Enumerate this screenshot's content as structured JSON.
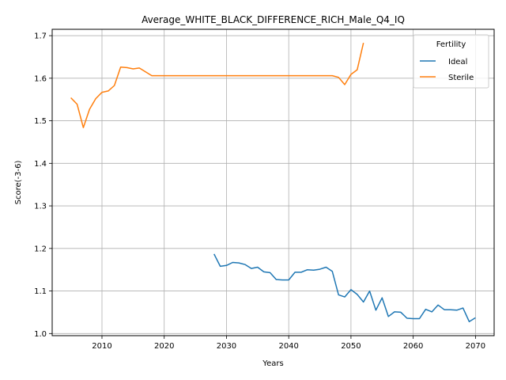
{
  "chart_data": {
    "type": "line",
    "title": "Average_WHITE_BLACK_DIFFERENCE_RICH_Male_Q4_IQ",
    "xlabel": "Years",
    "ylabel": "Score(-3-6)",
    "xlim": [
      2002,
      2073
    ],
    "ylim": [
      0.995,
      1.715
    ],
    "xticks": [
      2010,
      2020,
      2030,
      2040,
      2050,
      2060,
      2070
    ],
    "yticks": [
      1.0,
      1.1,
      1.2,
      1.3,
      1.4,
      1.5,
      1.6,
      1.7
    ],
    "xtick_labels": [
      "2010",
      "2020",
      "2030",
      "2040",
      "2050",
      "2060",
      "2070"
    ],
    "ytick_labels": [
      "1.0",
      "1.1",
      "1.2",
      "1.3",
      "1.4",
      "1.5",
      "1.6",
      "1.7"
    ],
    "grid": true,
    "legend": {
      "title": "Fertility",
      "position": "top-right"
    },
    "series": [
      {
        "name": "Ideal",
        "color": "#1f77b4",
        "x": [
          2028,
          2029,
          2030,
          2031,
          2032,
          2033,
          2034,
          2035,
          2036,
          2037,
          2038,
          2039,
          2040,
          2041,
          2042,
          2043,
          2044,
          2045,
          2046,
          2047,
          2048,
          2049,
          2050,
          2051,
          2052,
          2053,
          2054,
          2055,
          2056,
          2057,
          2058,
          2059,
          2060,
          2061,
          2062,
          2063,
          2064,
          2065,
          2066,
          2067,
          2068,
          2069,
          2070
        ],
        "y": [
          1.187,
          1.158,
          1.16,
          1.167,
          1.166,
          1.162,
          1.153,
          1.156,
          1.145,
          1.143,
          1.127,
          1.126,
          1.126,
          1.144,
          1.144,
          1.15,
          1.149,
          1.151,
          1.156,
          1.146,
          1.091,
          1.086,
          1.103,
          1.092,
          1.074,
          1.1,
          1.055,
          1.084,
          1.04,
          1.051,
          1.05,
          1.036,
          1.035,
          1.035,
          1.057,
          1.051,
          1.067,
          1.056,
          1.056,
          1.055,
          1.06,
          1.028,
          1.037
        ]
      },
      {
        "name": "Sterile",
        "color": "#ff7f0e",
        "x": [
          2005,
          2006,
          2007,
          2008,
          2009,
          2010,
          2011,
          2012,
          2013,
          2014,
          2015,
          2016,
          2017,
          2018,
          2019,
          2020,
          2021,
          2022,
          2023,
          2024,
          2025,
          2026,
          2027,
          2028,
          2029,
          2030,
          2031,
          2032,
          2033,
          2034,
          2035,
          2036,
          2037,
          2038,
          2039,
          2040,
          2041,
          2042,
          2043,
          2044,
          2045,
          2046,
          2047,
          2048,
          2049,
          2050,
          2051,
          2052
        ],
        "y": [
          1.554,
          1.539,
          1.484,
          1.527,
          1.552,
          1.567,
          1.57,
          1.583,
          1.626,
          1.625,
          1.622,
          1.624,
          1.615,
          1.606,
          1.606,
          1.606,
          1.606,
          1.606,
          1.606,
          1.606,
          1.606,
          1.606,
          1.606,
          1.606,
          1.606,
          1.606,
          1.606,
          1.606,
          1.606,
          1.606,
          1.606,
          1.606,
          1.606,
          1.606,
          1.606,
          1.606,
          1.606,
          1.606,
          1.606,
          1.606,
          1.606,
          1.606,
          1.606,
          1.602,
          1.585,
          1.609,
          1.62,
          1.683
        ]
      }
    ]
  }
}
